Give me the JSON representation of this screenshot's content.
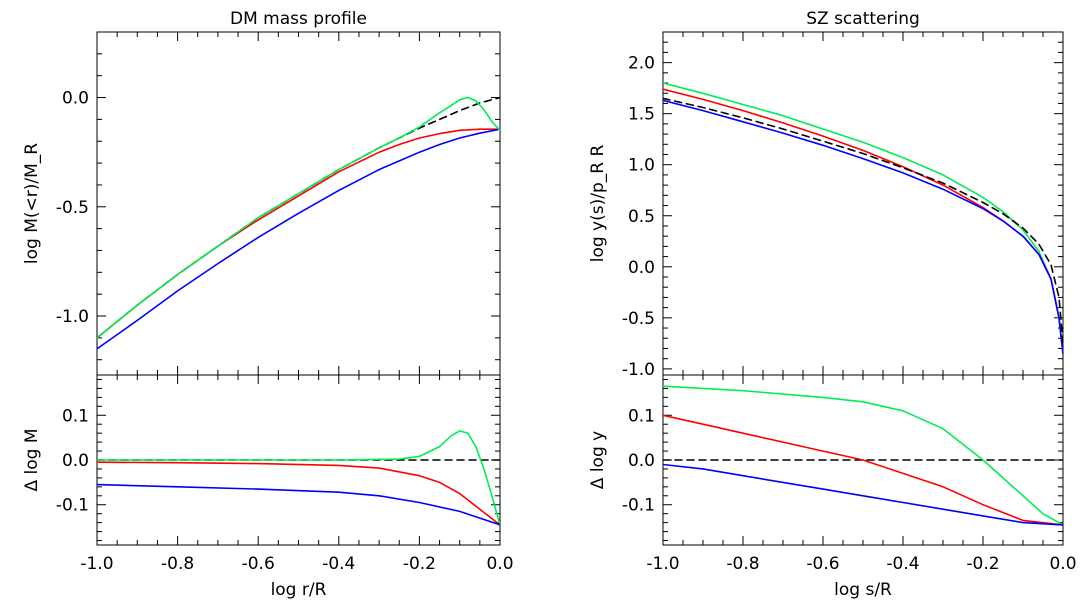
{
  "chart_data": [
    {
      "type": "line",
      "title": "DM mass profile",
      "xlabel": "",
      "ylabel": "log M(<r)/M_R",
      "xlim": [
        -1.0,
        0.0
      ],
      "ylim": [
        -1.27,
        0.3
      ],
      "yticks": [
        "-1.0",
        "-0.5",
        "0.0"
      ],
      "ytick_values": [
        -1.0,
        -0.5,
        0.0
      ],
      "series": [
        {
          "color": "#000000",
          "dashed": true,
          "x": [
            -1.0,
            -0.9,
            -0.8,
            -0.7,
            -0.6,
            -0.5,
            -0.4,
            -0.3,
            -0.25,
            -0.2,
            -0.15,
            -0.1,
            -0.05,
            0.0
          ],
          "y": [
            -1.1,
            -0.95,
            -0.81,
            -0.68,
            -0.55,
            -0.44,
            -0.33,
            -0.23,
            -0.185,
            -0.14,
            -0.1,
            -0.06,
            -0.025,
            0.0
          ]
        },
        {
          "color": "#ff0000",
          "dashed": false,
          "x": [
            -1.0,
            -0.9,
            -0.8,
            -0.7,
            -0.6,
            -0.5,
            -0.4,
            -0.3,
            -0.25,
            -0.2,
            -0.15,
            -0.1,
            -0.05,
            0.0
          ],
          "y": [
            -1.1,
            -0.95,
            -0.81,
            -0.68,
            -0.56,
            -0.45,
            -0.34,
            -0.25,
            -0.215,
            -0.185,
            -0.165,
            -0.15,
            -0.145,
            -0.145
          ]
        },
        {
          "color": "#0000ff",
          "dashed": false,
          "x": [
            -1.0,
            -0.9,
            -0.8,
            -0.7,
            -0.6,
            -0.5,
            -0.4,
            -0.3,
            -0.25,
            -0.2,
            -0.15,
            -0.1,
            -0.05,
            0.0
          ],
          "y": [
            -1.15,
            -1.02,
            -0.885,
            -0.76,
            -0.64,
            -0.53,
            -0.425,
            -0.33,
            -0.29,
            -0.25,
            -0.215,
            -0.185,
            -0.163,
            -0.145
          ]
        },
        {
          "color": "#00ee55",
          "dashed": false,
          "x": [
            -1.0,
            -0.9,
            -0.8,
            -0.7,
            -0.6,
            -0.5,
            -0.4,
            -0.3,
            -0.25,
            -0.2,
            -0.15,
            -0.12,
            -0.1,
            -0.08,
            -0.06,
            -0.04,
            -0.02,
            0.0
          ],
          "y": [
            -1.1,
            -0.95,
            -0.81,
            -0.68,
            -0.55,
            -0.44,
            -0.33,
            -0.23,
            -0.185,
            -0.135,
            -0.07,
            -0.035,
            -0.01,
            0.0,
            -0.015,
            -0.055,
            -0.11,
            -0.15
          ]
        }
      ]
    },
    {
      "type": "line",
      "title": "",
      "xlabel": "log r/R",
      "ylabel": "Δ log M",
      "xlim": [
        -1.0,
        0.0
      ],
      "ylim": [
        -0.19,
        0.19
      ],
      "xticks": [
        "-1.0",
        "-0.8",
        "-0.6",
        "-0.4",
        "-0.2",
        "0.0"
      ],
      "xtick_values": [
        -1.0,
        -0.8,
        -0.6,
        -0.4,
        -0.2,
        0.0
      ],
      "yticks": [
        "-0.1",
        "0.0",
        "0.1"
      ],
      "ytick_values": [
        -0.1,
        0.0,
        0.1
      ],
      "series": [
        {
          "color": "#000000",
          "dashed": true,
          "x": [
            -1.0,
            0.0
          ],
          "y": [
            0.0,
            0.0
          ]
        },
        {
          "color": "#00ee55",
          "dashed": false,
          "x": [
            -1.0,
            -0.4,
            -0.25,
            -0.2,
            -0.15,
            -0.12,
            -0.1,
            -0.08,
            -0.06,
            -0.04,
            -0.02,
            0.0
          ],
          "y": [
            0.0,
            0.0,
            0.002,
            0.008,
            0.03,
            0.055,
            0.065,
            0.06,
            0.03,
            -0.02,
            -0.08,
            -0.145
          ]
        },
        {
          "color": "#ff0000",
          "dashed": false,
          "x": [
            -1.0,
            -0.8,
            -0.6,
            -0.4,
            -0.3,
            -0.2,
            -0.15,
            -0.1,
            -0.05,
            0.0
          ],
          "y": [
            -0.005,
            -0.006,
            -0.008,
            -0.012,
            -0.018,
            -0.035,
            -0.05,
            -0.075,
            -0.11,
            -0.145
          ]
        },
        {
          "color": "#0000ff",
          "dashed": false,
          "x": [
            -1.0,
            -0.8,
            -0.6,
            -0.4,
            -0.3,
            -0.2,
            -0.1,
            0.0
          ],
          "y": [
            -0.055,
            -0.06,
            -0.065,
            -0.072,
            -0.08,
            -0.095,
            -0.115,
            -0.145
          ]
        }
      ]
    },
    {
      "type": "line",
      "title": "SZ scattering",
      "xlabel": "",
      "ylabel": "log y(s)/p_R R",
      "xlim": [
        -1.0,
        0.0
      ],
      "ylim": [
        -1.06,
        2.3
      ],
      "yticks": [
        "-1.0",
        "-0.5",
        "0.0",
        "0.5",
        "1.0",
        "1.5",
        "2.0"
      ],
      "ytick_values": [
        -1.0,
        -0.5,
        0.0,
        0.5,
        1.0,
        1.5,
        2.0
      ],
      "series": [
        {
          "color": "#00ee55",
          "dashed": false,
          "x": [
            -1.0,
            -0.9,
            -0.8,
            -0.7,
            -0.6,
            -0.5,
            -0.4,
            -0.3,
            -0.2,
            -0.15,
            -0.1,
            -0.06,
            -0.03,
            -0.01,
            0.0
          ],
          "y": [
            1.8,
            1.7,
            1.59,
            1.48,
            1.35,
            1.22,
            1.07,
            0.9,
            0.68,
            0.54,
            0.36,
            0.15,
            -0.12,
            -0.5,
            -0.85
          ]
        },
        {
          "color": "#ff0000",
          "dashed": false,
          "x": [
            -1.0,
            -0.9,
            -0.8,
            -0.7,
            -0.6,
            -0.5,
            -0.4,
            -0.3,
            -0.2,
            -0.15,
            -0.1,
            -0.06,
            -0.03,
            -0.01,
            0.0
          ],
          "y": [
            1.74,
            1.64,
            1.53,
            1.41,
            1.28,
            1.14,
            0.98,
            0.8,
            0.58,
            0.45,
            0.3,
            0.12,
            -0.12,
            -0.5,
            -0.85
          ]
        },
        {
          "color": "#0000ff",
          "dashed": false,
          "x": [
            -1.0,
            -0.9,
            -0.8,
            -0.7,
            -0.6,
            -0.5,
            -0.4,
            -0.3,
            -0.2,
            -0.15,
            -0.1,
            -0.06,
            -0.03,
            -0.01,
            0.0
          ],
          "y": [
            1.63,
            1.53,
            1.42,
            1.31,
            1.19,
            1.06,
            0.92,
            0.76,
            0.57,
            0.45,
            0.3,
            0.12,
            -0.12,
            -0.5,
            -0.85
          ]
        },
        {
          "color": "#000000",
          "dashed": true,
          "x": [
            -1.0,
            -0.9,
            -0.8,
            -0.7,
            -0.6,
            -0.5,
            -0.4,
            -0.3,
            -0.2,
            -0.15,
            -0.1,
            -0.06,
            -0.03,
            -0.01,
            0.0
          ],
          "y": [
            1.65,
            1.56,
            1.46,
            1.35,
            1.23,
            1.11,
            0.97,
            0.82,
            0.63,
            0.52,
            0.38,
            0.22,
            0.02,
            -0.3,
            -0.75
          ]
        }
      ]
    },
    {
      "type": "line",
      "title": "",
      "xlabel": "log s/R",
      "ylabel": "Δ log y",
      "xlim": [
        -1.0,
        0.0
      ],
      "ylim": [
        -0.19,
        0.19
      ],
      "xticks": [
        "-1.0",
        "-0.8",
        "-0.6",
        "-0.4",
        "-0.2",
        "0.0"
      ],
      "xtick_values": [
        -1.0,
        -0.8,
        -0.6,
        -0.4,
        -0.2,
        0.0
      ],
      "yticks": [
        "-0.1",
        "0.0",
        "0.1"
      ],
      "ytick_values": [
        -0.1,
        0.0,
        0.1
      ],
      "series": [
        {
          "color": "#000000",
          "dashed": true,
          "x": [
            -1.0,
            0.0
          ],
          "y": [
            0.0,
            0.0
          ]
        },
        {
          "color": "#00ee55",
          "dashed": false,
          "x": [
            -1.0,
            -0.8,
            -0.6,
            -0.5,
            -0.4,
            -0.3,
            -0.2,
            -0.15,
            -0.1,
            -0.05,
            0.0
          ],
          "y": [
            0.165,
            0.155,
            0.14,
            0.13,
            0.11,
            0.07,
            0.0,
            -0.04,
            -0.08,
            -0.12,
            -0.145
          ]
        },
        {
          "color": "#ff0000",
          "dashed": false,
          "x": [
            -1.0,
            -0.9,
            -0.8,
            -0.7,
            -0.6,
            -0.5,
            -0.4,
            -0.3,
            -0.2,
            -0.1,
            0.0
          ],
          "y": [
            0.1,
            0.08,
            0.06,
            0.04,
            0.02,
            0.0,
            -0.03,
            -0.06,
            -0.1,
            -0.135,
            -0.145
          ]
        },
        {
          "color": "#0000ff",
          "dashed": false,
          "x": [
            -1.0,
            -0.9,
            -0.8,
            -0.7,
            -0.6,
            -0.5,
            -0.4,
            -0.3,
            -0.2,
            -0.1,
            0.0
          ],
          "y": [
            -0.01,
            -0.02,
            -0.035,
            -0.05,
            -0.065,
            -0.08,
            -0.095,
            -0.11,
            -0.125,
            -0.14,
            -0.145
          ]
        }
      ]
    }
  ]
}
